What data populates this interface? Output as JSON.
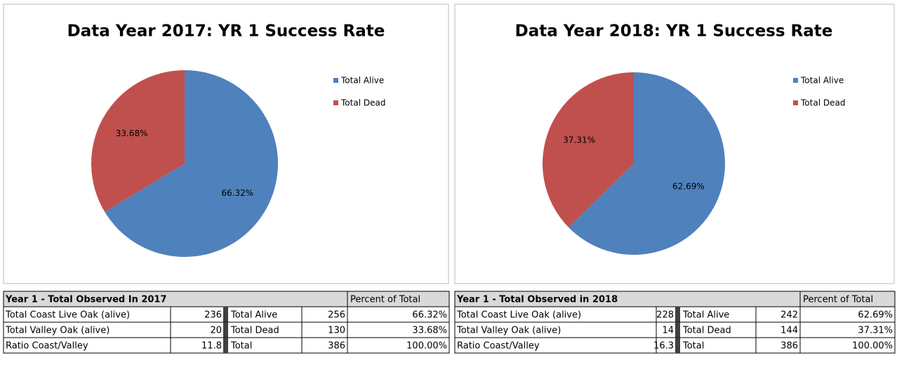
{
  "chart_data": [
    {
      "type": "pie",
      "title": "Data Year 2017: YR 1 Success Rate",
      "categories": [
        "Total Alive",
        "Total Dead"
      ],
      "values": [
        66.32,
        33.68
      ],
      "value_labels": [
        "66.32%",
        "33.68%"
      ],
      "colors": [
        "#4f81bd",
        "#c0504d"
      ],
      "legend": "right"
    },
    {
      "type": "pie",
      "title": "Data Year 2018: YR 1 Success Rate",
      "categories": [
        "Total Alive",
        "Total Dead"
      ],
      "values": [
        62.69,
        37.31
      ],
      "value_labels": [
        "62.69%",
        "37.31%"
      ],
      "colors": [
        "#4f81bd",
        "#c0504d"
      ],
      "legend": "right"
    }
  ],
  "tables": [
    {
      "title": "Year 1 - Total Observed In 2017",
      "header_right": "Percent of Total",
      "rows": [
        [
          "Total Coast Live Oak (alive)",
          "236",
          "Total Alive",
          "256",
          "66.32%"
        ],
        [
          "Total Valley Oak (alive)",
          "20",
          "Total Dead",
          "130",
          "33.68%"
        ],
        [
          "Ratio Coast/Valley",
          "11.8",
          "Total",
          "386",
          "100.00%"
        ]
      ]
    },
    {
      "title": "Year 1 - Total Observed in 2018",
      "header_right": "Percent of Total",
      "rows": [
        [
          "Total Coast Live Oak (alive)",
          "228",
          "Total Alive",
          "242",
          "62.69%"
        ],
        [
          "Total Valley Oak (alive)",
          "14",
          "Total Dead",
          "144",
          "37.31%"
        ],
        [
          "Ratio Coast/Valley",
          "16.3",
          "Total",
          "386",
          "100.00%"
        ]
      ]
    }
  ]
}
